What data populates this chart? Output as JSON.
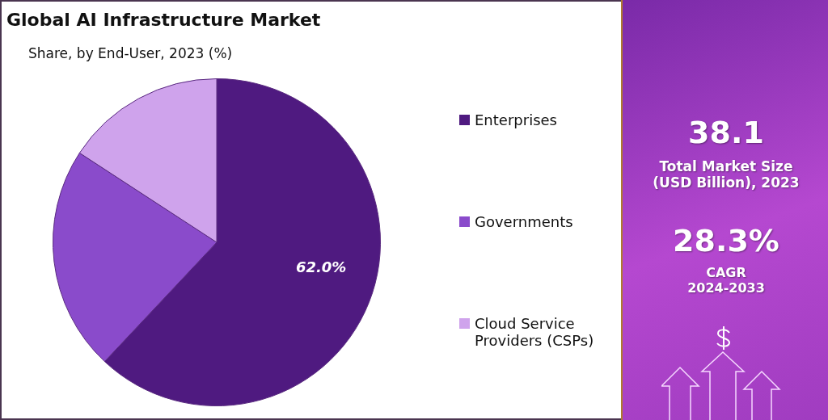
{
  "chart_data": {
    "type": "pie",
    "title": "Global AI Infrastructure Market",
    "subtitle": "Share, by End-User, 2023 (%)",
    "categories": [
      "Enterprises",
      "Governments",
      "Cloud Service Providers (CSPs)"
    ],
    "values": [
      62.0,
      22.2,
      15.8
    ],
    "colors": [
      "#4f1a80",
      "#8a4bcb",
      "#cfa3ec"
    ],
    "value_labels": [
      "62.0%",
      null,
      null
    ],
    "legend": "right",
    "annotations": [
      "38.1",
      "Total Market Size (USD Billion), 2023",
      "28.3%",
      "CAGR 2024-2033"
    ]
  }
}
